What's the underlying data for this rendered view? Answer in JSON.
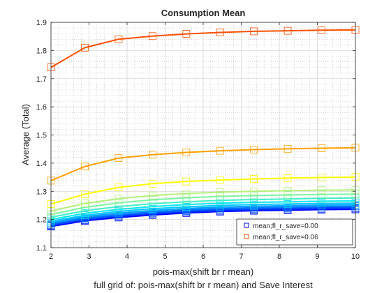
{
  "chart_data": {
    "type": "line",
    "title": "Consumption Mean",
    "xlabel": "pois-max(shift br r mean)",
    "xlabel2": "full grid of: pois-max(shift br r mean) and Save Interest",
    "ylabel": "Average (Total)",
    "xlim": [
      2,
      10
    ],
    "ylim": [
      1.1,
      1.9
    ],
    "xticks": [
      "2",
      "3",
      "4",
      "5",
      "6",
      "7",
      "8",
      "9",
      "10"
    ],
    "yticks": [
      "1.1",
      "1.2",
      "1.3",
      "1.4",
      "1.5",
      "1.6",
      "1.7",
      "1.8",
      "1.9"
    ],
    "grid": "minor-dotted",
    "legend_position": "bottom-right",
    "x": [
      2,
      2.889,
      3.778,
      4.667,
      5.556,
      6.444,
      7.333,
      8.222,
      9.111,
      10
    ],
    "series": [
      {
        "color": "#0000ff",
        "values": [
          1.175,
          1.195,
          1.207,
          1.216,
          1.223,
          1.228,
          1.231,
          1.233,
          1.235,
          1.236
        ]
      },
      {
        "color": "#0028ff",
        "values": [
          1.178,
          1.198,
          1.21,
          1.219,
          1.226,
          1.231,
          1.234,
          1.236,
          1.238,
          1.239
        ]
      },
      {
        "color": "#0050ff",
        "values": [
          1.181,
          1.201,
          1.214,
          1.223,
          1.23,
          1.235,
          1.238,
          1.24,
          1.242,
          1.243
        ]
      },
      {
        "color": "#0078ff",
        "values": [
          1.185,
          1.205,
          1.218,
          1.227,
          1.234,
          1.239,
          1.242,
          1.244,
          1.246,
          1.247
        ]
      },
      {
        "color": "#00a0ff",
        "values": [
          1.189,
          1.21,
          1.223,
          1.232,
          1.239,
          1.244,
          1.247,
          1.249,
          1.251,
          1.252
        ]
      },
      {
        "color": "#00c8ff",
        "values": [
          1.194,
          1.215,
          1.229,
          1.238,
          1.245,
          1.25,
          1.253,
          1.255,
          1.257,
          1.258
        ]
      },
      {
        "color": "#00e6f0",
        "values": [
          1.2,
          1.222,
          1.236,
          1.246,
          1.253,
          1.258,
          1.261,
          1.263,
          1.265,
          1.266
        ]
      },
      {
        "color": "#3cf0c8",
        "values": [
          1.208,
          1.231,
          1.246,
          1.256,
          1.263,
          1.268,
          1.271,
          1.273,
          1.275,
          1.276
        ]
      },
      {
        "color": "#78f5a0",
        "values": [
          1.218,
          1.243,
          1.259,
          1.27,
          1.277,
          1.282,
          1.285,
          1.287,
          1.289,
          1.29
        ]
      },
      {
        "color": "#b4f078",
        "values": [
          1.23,
          1.257,
          1.274,
          1.285,
          1.292,
          1.297,
          1.3,
          1.302,
          1.304,
          1.305
        ]
      },
      {
        "color": "#ffff00",
        "values": [
          1.255,
          1.29,
          1.314,
          1.327,
          1.335,
          1.34,
          1.344,
          1.347,
          1.349,
          1.351
        ]
      },
      {
        "color": "#ffa000",
        "values": [
          1.338,
          1.388,
          1.418,
          1.43,
          1.438,
          1.444,
          1.448,
          1.451,
          1.453,
          1.455
        ]
      },
      {
        "color": "#ff5000",
        "values": [
          1.74,
          1.81,
          1.84,
          1.851,
          1.859,
          1.864,
          1.868,
          1.87,
          1.872,
          1.873
        ]
      }
    ],
    "legend": [
      {
        "label": "mean;fl_r_save=0.00",
        "color": "#0000ff"
      },
      {
        "label": "mean;fl_r_save=0.06",
        "color": "#ff5000"
      }
    ]
  }
}
